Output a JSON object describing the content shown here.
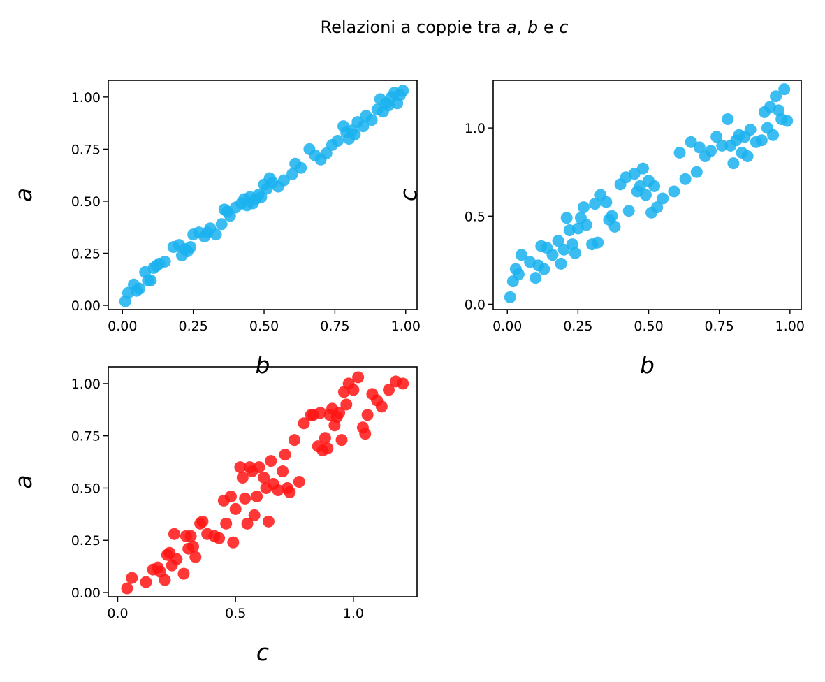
{
  "figure": {
    "title_prefix": "Relazioni a coppie tra ",
    "title_parts": [
      "a",
      ", ",
      "b",
      " e ",
      "c"
    ]
  },
  "colors": {
    "blue": "#1ab2ef",
    "red": "#ff1414"
  },
  "chart_data": [
    {
      "type": "scatter",
      "xlabel": "b",
      "ylabel": "a",
      "xlim": [
        -0.05,
        1.04
      ],
      "ylim": [
        -0.02,
        1.08
      ],
      "xticks": [
        "0.00",
        "0.25",
        "0.50",
        "0.75",
        "1.00"
      ],
      "yticks": [
        "0.00",
        "0.25",
        "0.50",
        "0.75",
        "1.00"
      ],
      "color": "#1ab2ef",
      "x": [
        0.01,
        0.02,
        0.04,
        0.05,
        0.06,
        0.08,
        0.09,
        0.1,
        0.11,
        0.12,
        0.13,
        0.15,
        0.18,
        0.2,
        0.21,
        0.22,
        0.23,
        0.24,
        0.25,
        0.27,
        0.29,
        0.3,
        0.31,
        0.33,
        0.35,
        0.36,
        0.37,
        0.38,
        0.4,
        0.42,
        0.43,
        0.44,
        0.45,
        0.46,
        0.47,
        0.48,
        0.49,
        0.5,
        0.51,
        0.52,
        0.53,
        0.55,
        0.57,
        0.6,
        0.61,
        0.63,
        0.66,
        0.68,
        0.7,
        0.72,
        0.74,
        0.76,
        0.78,
        0.79,
        0.8,
        0.81,
        0.82,
        0.83,
        0.85,
        0.86,
        0.88,
        0.9,
        0.91,
        0.92,
        0.93,
        0.94,
        0.95,
        0.96,
        0.97,
        0.98,
        0.99
      ],
      "y": [
        0.02,
        0.06,
        0.1,
        0.07,
        0.08,
        0.16,
        0.12,
        0.12,
        0.18,
        0.19,
        0.2,
        0.21,
        0.28,
        0.29,
        0.24,
        0.27,
        0.26,
        0.28,
        0.34,
        0.35,
        0.33,
        0.35,
        0.37,
        0.34,
        0.39,
        0.46,
        0.45,
        0.43,
        0.47,
        0.49,
        0.51,
        0.48,
        0.52,
        0.49,
        0.51,
        0.53,
        0.52,
        0.58,
        0.56,
        0.61,
        0.59,
        0.57,
        0.6,
        0.63,
        0.68,
        0.66,
        0.75,
        0.72,
        0.7,
        0.73,
        0.77,
        0.79,
        0.86,
        0.83,
        0.8,
        0.84,
        0.82,
        0.88,
        0.86,
        0.91,
        0.89,
        0.94,
        0.99,
        0.93,
        0.97,
        0.96,
        1.0,
        1.02,
        0.97,
        1.01,
        1.03
      ]
    },
    {
      "type": "scatter",
      "xlabel": "b",
      "ylabel": "c",
      "xlim": [
        -0.05,
        1.04
      ],
      "ylim": [
        -0.03,
        1.27
      ],
      "xticks": [
        "0.00",
        "0.25",
        "0.50",
        "0.75",
        "1.00"
      ],
      "yticks": [
        "0.0",
        "0.5",
        "1.0"
      ],
      "color": "#1ab2ef",
      "x": [
        0.01,
        0.02,
        0.03,
        0.04,
        0.05,
        0.08,
        0.1,
        0.11,
        0.12,
        0.13,
        0.14,
        0.16,
        0.18,
        0.19,
        0.2,
        0.21,
        0.22,
        0.23,
        0.24,
        0.25,
        0.26,
        0.27,
        0.28,
        0.3,
        0.31,
        0.32,
        0.33,
        0.35,
        0.36,
        0.37,
        0.38,
        0.4,
        0.42,
        0.43,
        0.45,
        0.46,
        0.47,
        0.48,
        0.49,
        0.5,
        0.51,
        0.52,
        0.53,
        0.55,
        0.59,
        0.61,
        0.63,
        0.65,
        0.67,
        0.68,
        0.7,
        0.72,
        0.74,
        0.76,
        0.78,
        0.79,
        0.8,
        0.81,
        0.82,
        0.83,
        0.84,
        0.85,
        0.86,
        0.88,
        0.9,
        0.91,
        0.92,
        0.93,
        0.94,
        0.95,
        0.96,
        0.97,
        0.98,
        0.99
      ],
      "y": [
        0.04,
        0.13,
        0.2,
        0.17,
        0.28,
        0.24,
        0.15,
        0.22,
        0.33,
        0.2,
        0.32,
        0.28,
        0.36,
        0.23,
        0.31,
        0.49,
        0.42,
        0.34,
        0.29,
        0.43,
        0.49,
        0.55,
        0.45,
        0.34,
        0.57,
        0.35,
        0.62,
        0.58,
        0.48,
        0.5,
        0.44,
        0.68,
        0.72,
        0.53,
        0.74,
        0.64,
        0.67,
        0.77,
        0.62,
        0.7,
        0.52,
        0.67,
        0.55,
        0.6,
        0.64,
        0.86,
        0.71,
        0.92,
        0.75,
        0.89,
        0.84,
        0.87,
        0.95,
        0.9,
        1.05,
        0.9,
        0.8,
        0.93,
        0.96,
        0.86,
        0.95,
        0.84,
        0.99,
        0.92,
        0.93,
        1.09,
        1.0,
        1.12,
        0.96,
        1.18,
        1.1,
        1.05,
        1.22,
        1.04
      ]
    },
    {
      "type": "scatter",
      "xlabel": "c",
      "ylabel": "a",
      "xlim": [
        -0.04,
        1.27
      ],
      "ylim": [
        -0.02,
        1.08
      ],
      "xticks": [
        "0.0",
        "0.5",
        "1.0"
      ],
      "yticks": [
        "0.00",
        "0.25",
        "0.50",
        "0.75",
        "1.00"
      ],
      "color": "#ff1414",
      "x": [
        0.04,
        0.06,
        0.12,
        0.15,
        0.17,
        0.18,
        0.2,
        0.21,
        0.22,
        0.23,
        0.24,
        0.25,
        0.28,
        0.29,
        0.3,
        0.31,
        0.32,
        0.33,
        0.35,
        0.36,
        0.38,
        0.41,
        0.43,
        0.45,
        0.46,
        0.48,
        0.49,
        0.5,
        0.52,
        0.53,
        0.54,
        0.55,
        0.56,
        0.57,
        0.58,
        0.59,
        0.6,
        0.62,
        0.63,
        0.64,
        0.65,
        0.66,
        0.68,
        0.7,
        0.71,
        0.72,
        0.73,
        0.75,
        0.77,
        0.79,
        0.82,
        0.83,
        0.85,
        0.86,
        0.87,
        0.88,
        0.89,
        0.9,
        0.91,
        0.92,
        0.93,
        0.94,
        0.95,
        0.96,
        0.97,
        0.98,
        1.0,
        1.02,
        1.04,
        1.05,
        1.06,
        1.08,
        1.1,
        1.12,
        1.15,
        1.18,
        1.21
      ],
      "y": [
        0.02,
        0.07,
        0.05,
        0.11,
        0.12,
        0.1,
        0.06,
        0.18,
        0.19,
        0.13,
        0.28,
        0.16,
        0.09,
        0.27,
        0.21,
        0.27,
        0.22,
        0.17,
        0.33,
        0.34,
        0.28,
        0.27,
        0.26,
        0.44,
        0.33,
        0.46,
        0.24,
        0.4,
        0.6,
        0.55,
        0.45,
        0.33,
        0.6,
        0.58,
        0.37,
        0.46,
        0.6,
        0.55,
        0.5,
        0.34,
        0.63,
        0.52,
        0.49,
        0.58,
        0.66,
        0.5,
        0.48,
        0.73,
        0.53,
        0.81,
        0.85,
        0.85,
        0.7,
        0.86,
        0.68,
        0.74,
        0.69,
        0.85,
        0.88,
        0.8,
        0.84,
        0.86,
        0.73,
        0.96,
        0.9,
        1.0,
        0.97,
        1.03,
        0.79,
        0.76,
        0.85,
        0.95,
        0.92,
        0.89,
        0.97,
        1.01,
        1.0
      ]
    }
  ]
}
